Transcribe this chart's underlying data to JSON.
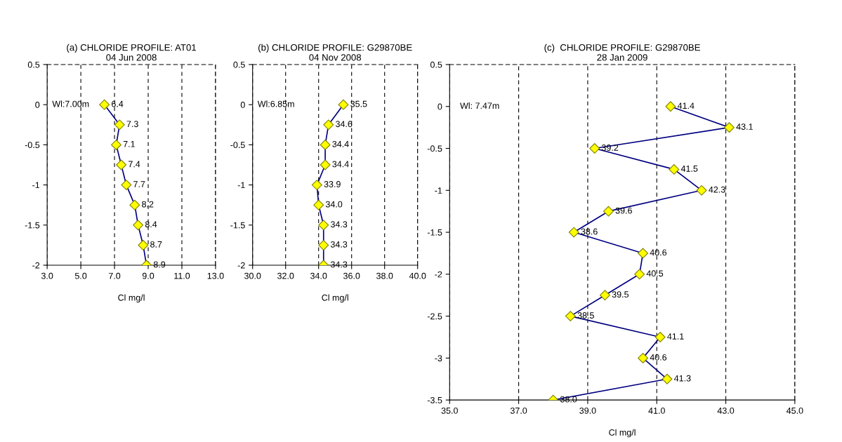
{
  "chart_data": [
    {
      "type": "line",
      "orientation": "horizontal",
      "title": "(a) CHLORIDE PROFILE: AT01\n04 Jun 2008",
      "xlabel": "Cl mg/l",
      "annotations": [
        "Wl:7.00m"
      ],
      "series": [
        {
          "color": "#000080",
          "x": [
            0,
            -0.25,
            -0.5,
            -0.75,
            -1,
            -1.25,
            -1.5,
            -1.75,
            -2
          ],
          "values": [
            6.4,
            7.3,
            7.1,
            7.4,
            7.7,
            8.2,
            8.4,
            8.7,
            8.9
          ],
          "value_labels": [
            "6.4",
            "7.3",
            "7.1",
            "7.4",
            "7.7",
            "8.2",
            "8.4",
            "8.7",
            "8.9"
          ]
        }
      ],
      "xlim": [
        3,
        13
      ],
      "xticks": [
        {
          "value": 3,
          "label": "3.0"
        },
        {
          "value": 5,
          "label": "5.0"
        },
        {
          "value": 7,
          "label": "7.0"
        },
        {
          "value": 9,
          "label": "9.0"
        },
        {
          "value": 11,
          "label": "11.0"
        },
        {
          "value": 13,
          "label": "13.0"
        }
      ],
      "ylim": [
        -2,
        0.5
      ],
      "yticks": [
        0.5,
        0,
        -0.5,
        -1,
        -1.5,
        -2
      ],
      "grid": "x",
      "marker": "diamond",
      "line_style": "solid"
    },
    {
      "type": "line",
      "orientation": "horizontal",
      "title": "(b) CHLORIDE PROFILE: G29870BE\n04 Nov 2008",
      "xlabel": "Cl mg/l",
      "annotations": [
        "Wl:6.85m"
      ],
      "series": [
        {
          "color": "#000080",
          "x": [
            0,
            -0.25,
            -0.5,
            -0.75,
            -1,
            -1.25,
            -1.5,
            -1.75,
            -2
          ],
          "values": [
            35.5,
            34.6,
            34.4,
            34.4,
            33.9,
            34.0,
            34.3,
            34.3,
            34.3
          ],
          "value_labels": [
            "35.5",
            "34.6",
            "34.4",
            "34.4",
            "33.9",
            "34.0",
            "34.3",
            "34.3",
            "34.3"
          ]
        }
      ],
      "xlim": [
        30,
        40
      ],
      "xticks": [
        {
          "value": 30,
          "label": "30.0"
        },
        {
          "value": 32,
          "label": "32.0"
        },
        {
          "value": 34,
          "label": "34.0"
        },
        {
          "value": 36,
          "label": "36.0"
        },
        {
          "value": 38,
          "label": "38.0"
        },
        {
          "value": 40,
          "label": "40.0"
        }
      ],
      "ylim": [
        -2,
        0.5
      ],
      "yticks": [
        0.5,
        0,
        -0.5,
        -1,
        -1.5,
        -2
      ],
      "grid": "x",
      "marker": "diamond",
      "line_style": "solid"
    },
    {
      "type": "line",
      "orientation": "horizontal",
      "title": "(c)  CHLORIDE PROFILE: G29870BE\n28 Jan 2009",
      "xlabel": "Cl mg/l",
      "annotations": [
        "Wl: 7.47m"
      ],
      "series": [
        {
          "color": "#000080",
          "x": [
            0,
            -0.25,
            -0.5,
            -0.75,
            -1,
            -1.25,
            -1.5,
            -1.75,
            -2,
            -2.25,
            -2.5,
            -2.75,
            -3,
            -3.25,
            -3.5
          ],
          "values": [
            41.4,
            43.1,
            39.2,
            41.5,
            42.3,
            39.6,
            38.6,
            40.6,
            40.5,
            39.5,
            38.5,
            41.1,
            40.6,
            41.3,
            38.0
          ],
          "value_labels": [
            "41.4",
            "43.1",
            "39.2",
            "41.5",
            "42.3",
            "39.6",
            "38.6",
            "40.6",
            "40.5",
            "39.5",
            "38.5",
            "41.1",
            "40.6",
            "41.3",
            "38.0"
          ]
        }
      ],
      "xlim": [
        35,
        45
      ],
      "xticks": [
        {
          "value": 35,
          "label": "35.0"
        },
        {
          "value": 37,
          "label": "37.0"
        },
        {
          "value": 39,
          "label": "39.0"
        },
        {
          "value": 41,
          "label": "41.0"
        },
        {
          "value": 43,
          "label": "43.0"
        },
        {
          "value": 45,
          "label": "45.0"
        }
      ],
      "ylim": [
        -3.5,
        0.5
      ],
      "yticks": [
        0.5,
        0,
        -0.5,
        -1,
        -1.5,
        -2,
        -2.5,
        -3,
        -3.5
      ],
      "grid": "x",
      "marker": "diamond",
      "line_style": "solid"
    }
  ]
}
